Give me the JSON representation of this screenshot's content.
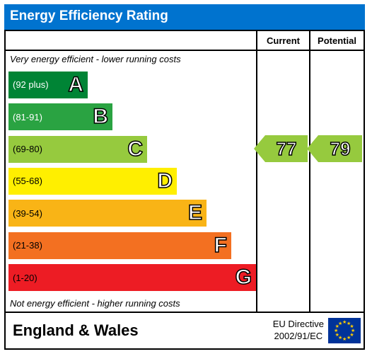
{
  "title": "Energy Efficiency Rating",
  "title_bg": "#0073cf",
  "caption_top": "Very energy efficient - lower running costs",
  "caption_bottom": "Not energy efficient - higher running costs",
  "columns": {
    "current": "Current",
    "potential": "Potential"
  },
  "bands": [
    {
      "letter": "A",
      "range": "(92 plus)",
      "color": "#008435",
      "width_pct": 32,
      "range_color": "#fff"
    },
    {
      "letter": "B",
      "range": "(81-91)",
      "color": "#2aa342",
      "width_pct": 42,
      "range_color": "#fff"
    },
    {
      "letter": "C",
      "range": "(69-80)",
      "color": "#96ca3e",
      "width_pct": 56,
      "range_color": "#000"
    },
    {
      "letter": "D",
      "range": "(55-68)",
      "color": "#ffef00",
      "width_pct": 68,
      "range_color": "#000"
    },
    {
      "letter": "E",
      "range": "(39-54)",
      "color": "#f9b416",
      "width_pct": 80,
      "range_color": "#000"
    },
    {
      "letter": "F",
      "range": "(21-38)",
      "color": "#f37021",
      "width_pct": 90,
      "range_color": "#000"
    },
    {
      "letter": "G",
      "range": "(1-20)",
      "color": "#ed1c24",
      "width_pct": 100,
      "range_color": "#000"
    }
  ],
  "current": {
    "value": "77",
    "band_index": 2
  },
  "potential": {
    "value": "79",
    "band_index": 2
  },
  "footer_region": "England & Wales",
  "footer_directive_l1": "EU Directive",
  "footer_directive_l2": "2002/91/EC",
  "typography": {
    "title_fontsize": 19,
    "letter_fontsize": 30,
    "value_fontsize": 26
  }
}
